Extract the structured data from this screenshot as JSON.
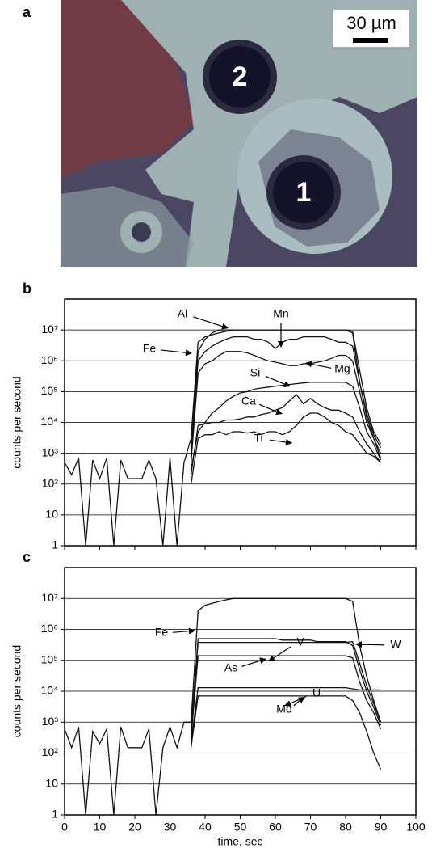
{
  "image": {
    "panel": "a",
    "scale_label": "30 µm",
    "spots": [
      "2",
      "1"
    ]
  },
  "chart_data": [
    {
      "type": "line",
      "panel": "b",
      "ylabel": "counts per second",
      "log_y": true,
      "grid": true,
      "show_xtick_labels": false,
      "xlim": [
        0,
        100
      ],
      "xticks": [
        0,
        10,
        20,
        30,
        40,
        50,
        60,
        70,
        80,
        90,
        100
      ],
      "ylim": [
        1,
        100000000
      ],
      "yticks": [
        1,
        10,
        {
          "value": 100,
          "label": "10²"
        },
        {
          "value": 1000,
          "label": "10³"
        },
        {
          "value": 10000,
          "label": "10⁴"
        },
        {
          "value": 100000,
          "label": "10⁵"
        },
        {
          "value": 1000000,
          "label": "10⁶"
        },
        {
          "value": 10000000,
          "label": "10⁷"
        }
      ],
      "x": [
        0,
        2,
        4,
        6,
        8,
        10,
        12,
        14,
        16,
        18,
        20,
        22,
        24,
        26,
        28,
        30,
        32,
        34,
        36,
        38,
        40,
        42,
        44,
        46,
        48,
        50,
        52,
        54,
        56,
        58,
        60,
        62,
        64,
        66,
        68,
        70,
        72,
        74,
        76,
        78,
        80,
        82,
        84,
        86,
        88,
        90
      ],
      "series": [
        {
          "name": "Fe",
          "color": "#111111",
          "values": [
            500,
            200,
            700,
            1,
            600,
            150,
            700,
            1,
            600,
            150,
            150,
            150,
            600,
            150,
            1,
            700,
            1,
            500,
            3000,
            4000000.0,
            6000000.0,
            7000000.0,
            8000000.0,
            9000000.0,
            10000000.0,
            10000000.0,
            10000000.0,
            10000000.0,
            10000000.0,
            10000000.0,
            10000000.0,
            10000000.0,
            10000000.0,
            10000000.0,
            10000000.0,
            10000000.0,
            10000000.0,
            10000000.0,
            10000000.0,
            10000000.0,
            10000000.0,
            8000000.0,
            200000.0,
            15000.0,
            3000,
            1000
          ]
        },
        {
          "name": "Al",
          "color": "#111111",
          "values": [
            null,
            null,
            null,
            null,
            null,
            null,
            null,
            null,
            null,
            null,
            null,
            null,
            null,
            null,
            null,
            null,
            null,
            null,
            1000,
            2000000.0,
            5000000.0,
            8000000.0,
            10000000.0,
            10000000.0,
            10000000.0,
            10000000.0,
            10000000.0,
            10000000.0,
            10000000.0,
            10000000.0,
            10000000.0,
            10000000.0,
            10000000.0,
            10000000.0,
            10000000.0,
            10000000.0,
            10000000.0,
            10000000.0,
            10000000.0,
            10000000.0,
            10000000.0,
            9000000.0,
            500000.0,
            30000.0,
            5000,
            2000
          ]
        },
        {
          "name": "Mn",
          "color": "#111111",
          "values": [
            null,
            null,
            null,
            null,
            null,
            null,
            null,
            null,
            null,
            null,
            null,
            null,
            null,
            null,
            null,
            null,
            null,
            null,
            800,
            1000000.0,
            2000000.0,
            3000000.0,
            4000000.0,
            5000000.0,
            6000000.0,
            6000000.0,
            6000000.0,
            5000000.0,
            5000000.0,
            4000000.0,
            2500000.0,
            4000000.0,
            5000000.0,
            5000000.0,
            6000000.0,
            6000000.0,
            6000000.0,
            6000000.0,
            5000000.0,
            4000000.0,
            4000000.0,
            3000000.0,
            200000.0,
            20000.0,
            4000,
            1500
          ]
        },
        {
          "name": "Mg",
          "color": "#111111",
          "values": [
            null,
            null,
            null,
            null,
            null,
            null,
            null,
            null,
            null,
            null,
            null,
            null,
            null,
            null,
            null,
            null,
            null,
            null,
            500,
            400000.0,
            800000.0,
            1000000.0,
            1500000.0,
            2000000.0,
            2000000.0,
            2000000.0,
            1800000.0,
            1500000.0,
            1200000.0,
            1000000.0,
            900000.0,
            800000.0,
            700000.0,
            700000.0,
            800000.0,
            800000.0,
            900000.0,
            1000000.0,
            1200000.0,
            1500000.0,
            1500000.0,
            1000000.0,
            100000.0,
            10000.0,
            3000,
            700
          ]
        },
        {
          "name": "Si",
          "color": "#111111",
          "values": [
            null,
            null,
            null,
            null,
            null,
            null,
            null,
            null,
            null,
            null,
            null,
            null,
            null,
            null,
            null,
            null,
            null,
            null,
            300,
            5000,
            10000.0,
            20000.0,
            30000.0,
            50000.0,
            70000.0,
            90000.0,
            100000.0,
            120000.0,
            130000.0,
            140000.0,
            150000.0,
            160000.0,
            170000.0,
            180000.0,
            190000.0,
            200000.0,
            200000.0,
            200000.0,
            200000.0,
            200000.0,
            200000.0,
            150000.0,
            30000.0,
            5000,
            2000,
            600
          ]
        },
        {
          "name": "Ca",
          "color": "#111111",
          "values": [
            null,
            null,
            null,
            null,
            null,
            null,
            null,
            null,
            null,
            null,
            null,
            null,
            null,
            null,
            null,
            null,
            null,
            null,
            200,
            8000,
            9000,
            10000.0,
            10000.0,
            12000.0,
            12000.0,
            13000.0,
            15000.0,
            15000.0,
            18000.0,
            20000.0,
            25000.0,
            30000.0,
            50000.0,
            80000.0,
            40000.0,
            60000.0,
            40000.0,
            30000.0,
            25000.0,
            25000.0,
            20000.0,
            15000.0,
            5000,
            2000,
            1000,
            500
          ]
        },
        {
          "name": "Ti",
          "color": "#111111",
          "values": [
            null,
            null,
            null,
            null,
            null,
            null,
            null,
            null,
            null,
            null,
            null,
            null,
            null,
            null,
            null,
            null,
            null,
            null,
            100,
            3000,
            4000,
            4000,
            5000,
            4000,
            5000,
            5000,
            4500,
            5000,
            4000,
            5000,
            5000,
            4000,
            5000,
            8000,
            15000.0,
            20000.0,
            20000.0,
            15000.0,
            10000.0,
            8000,
            5000,
            4000,
            2000,
            1000,
            800,
            500
          ]
        }
      ]
    },
    {
      "type": "line",
      "panel": "c",
      "ylabel": "counts per second",
      "xlabel": "time, sec",
      "log_y": true,
      "grid": true,
      "show_xtick_labels": true,
      "xlim": [
        0,
        100
      ],
      "xticks": [
        0,
        10,
        20,
        30,
        40,
        50,
        60,
        70,
        80,
        90,
        100
      ],
      "ylim": [
        1,
        100000000
      ],
      "yticks": [
        1,
        10,
        {
          "value": 100,
          "label": "10²"
        },
        {
          "value": 1000,
          "label": "10³"
        },
        {
          "value": 10000,
          "label": "10⁴"
        },
        {
          "value": 100000,
          "label": "10⁵"
        },
        {
          "value": 1000000,
          "label": "10⁶"
        },
        {
          "value": 10000000,
          "label": "10⁷"
        }
      ],
      "x": [
        0,
        2,
        4,
        6,
        8,
        10,
        12,
        14,
        16,
        18,
        20,
        22,
        24,
        26,
        28,
        30,
        32,
        34,
        36,
        38,
        40,
        42,
        44,
        46,
        48,
        50,
        52,
        54,
        56,
        58,
        60,
        62,
        64,
        66,
        68,
        70,
        72,
        74,
        76,
        78,
        80,
        82,
        84,
        86,
        88,
        90
      ],
      "series": [
        {
          "name": "Fe",
          "color": "#111111",
          "values": [
            600,
            150,
            700,
            1,
            500,
            200,
            600,
            1,
            700,
            150,
            150,
            150,
            600,
            1,
            150,
            700,
            150,
            1000,
            1000,
            4000000.0,
            6000000.0,
            7000000.0,
            8000000.0,
            9000000.0,
            10000000.0,
            10000000.0,
            10000000.0,
            10000000.0,
            10000000.0,
            10000000.0,
            10000000.0,
            10000000.0,
            10000000.0,
            10000000.0,
            10000000.0,
            10000000.0,
            10000000.0,
            10000000.0,
            10000000.0,
            10000000.0,
            10000000.0,
            8000000.0,
            300000.0,
            30000.0,
            5000,
            1000
          ]
        },
        {
          "name": "V",
          "color": "#111111",
          "values": [
            null,
            null,
            null,
            null,
            null,
            null,
            null,
            null,
            null,
            null,
            null,
            null,
            null,
            null,
            null,
            null,
            null,
            null,
            500,
            500000.0,
            500000.0,
            500000.0,
            500000.0,
            500000.0,
            500000.0,
            500000.0,
            500000.0,
            500000.0,
            500000.0,
            500000.0,
            500000.0,
            450000.0,
            450000.0,
            450000.0,
            450000.0,
            450000.0,
            400000.0,
            400000.0,
            400000.0,
            400000.0,
            400000.0,
            300000.0,
            50000.0,
            10000.0,
            3000,
            800
          ]
        },
        {
          "name": "W",
          "color": "#111111",
          "values": [
            null,
            null,
            null,
            null,
            null,
            null,
            null,
            null,
            null,
            null,
            null,
            null,
            null,
            null,
            null,
            null,
            null,
            null,
            400,
            380000.0,
            380000.0,
            380000.0,
            380000.0,
            380000.0,
            380000.0,
            380000.0,
            380000.0,
            380000.0,
            380000.0,
            380000.0,
            380000.0,
            380000.0,
            380000.0,
            380000.0,
            380000.0,
            380000.0,
            380000.0,
            380000.0,
            380000.0,
            380000.0,
            380000.0,
            400000.0,
            80000.0,
            15000.0,
            4000,
            1000
          ]
        },
        {
          "name": "As",
          "color": "#111111",
          "values": [
            null,
            null,
            null,
            null,
            null,
            null,
            null,
            null,
            null,
            null,
            null,
            null,
            null,
            null,
            null,
            null,
            null,
            null,
            300,
            140000.0,
            140000.0,
            140000.0,
            140000.0,
            140000.0,
            140000.0,
            140000.0,
            140000.0,
            140000.0,
            140000.0,
            140000.0,
            140000.0,
            140000.0,
            140000.0,
            140000.0,
            140000.0,
            140000.0,
            140000.0,
            140000.0,
            140000.0,
            140000.0,
            140000.0,
            120000.0,
            20000.0,
            5000,
            2000,
            600
          ]
        },
        {
          "name": "U",
          "color": "#111111",
          "values": [
            null,
            null,
            null,
            null,
            null,
            null,
            null,
            null,
            null,
            null,
            null,
            null,
            null,
            null,
            null,
            null,
            null,
            null,
            200,
            13000.0,
            13000.0,
            13000.0,
            13000.0,
            13000.0,
            13000.0,
            13000.0,
            13000.0,
            13000.0,
            13000.0,
            13000.0,
            13000.0,
            13000.0,
            13000.0,
            13000.0,
            13000.0,
            13000.0,
            13000.0,
            13000.0,
            13000.0,
            13000.0,
            13000.0,
            12000.0,
            11000.0,
            11000.0,
            11000.0,
            11000.0
          ]
        },
        {
          "name": "Mo",
          "color": "#111111",
          "values": [
            null,
            null,
            null,
            null,
            null,
            null,
            null,
            null,
            null,
            null,
            null,
            null,
            null,
            null,
            null,
            null,
            null,
            null,
            150,
            7000,
            7000,
            7000,
            7000,
            7000,
            7000,
            7000,
            7000,
            7000,
            7000,
            7000,
            7000,
            7000,
            7000,
            7000,
            7000,
            7000,
            7000,
            7000,
            7000,
            7000,
            7000,
            5000,
            2000,
            500,
            100,
            30
          ]
        }
      ]
    }
  ]
}
